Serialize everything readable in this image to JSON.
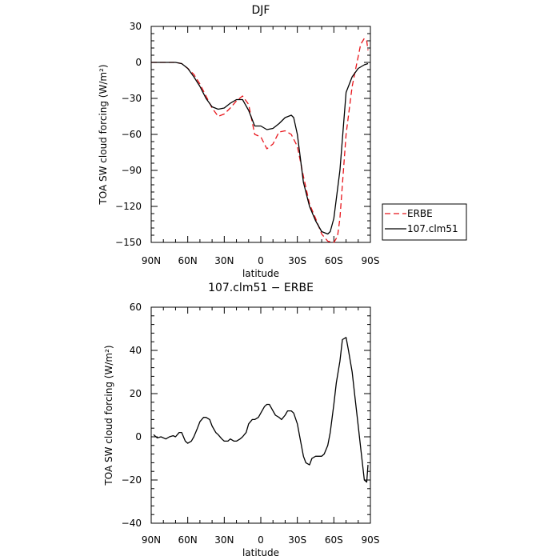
{
  "chart_data": [
    {
      "type": "line",
      "title": "DJF",
      "xlabel": "latitude",
      "ylabel": "TOA SW cloud forcing (W/m²)",
      "xlim": [
        90,
        -90
      ],
      "ylim": [
        -150,
        30
      ],
      "x_ticks": [
        90,
        60,
        30,
        0,
        -30,
        -60,
        -90
      ],
      "x_tick_labels": [
        "90N",
        "60N",
        "30N",
        "0",
        "30S",
        "60S",
        "90S"
      ],
      "y_ticks": [
        30,
        0,
        -30,
        -60,
        -90,
        -120,
        -150
      ],
      "y_tick_labels": [
        "30",
        "0",
        "−30",
        "−60",
        "−90",
        "−120",
        "−150"
      ],
      "legend_position": "right",
      "series": [
        {
          "name": "ERBE",
          "color": "#e8151b",
          "dash": "dashed",
          "x": [
            90,
            85,
            80,
            75,
            70,
            65,
            60,
            55,
            50,
            45,
            40,
            35,
            30,
            25,
            20,
            15,
            10,
            5,
            0,
            -5,
            -10,
            -15,
            -20,
            -25,
            -30,
            -35,
            -40,
            -45,
            -50,
            -55,
            -60,
            -63,
            -65,
            -70,
            -75,
            -78,
            -80,
            -82,
            -85,
            -87,
            -88
          ],
          "y": [
            0,
            0,
            0,
            0,
            0,
            -1,
            -5,
            -10,
            -18,
            -28,
            -38,
            -45,
            -43,
            -38,
            -32,
            -28,
            -35,
            -60,
            -62,
            -72,
            -68,
            -58,
            -57,
            -60,
            -70,
            -95,
            -118,
            -130,
            -143,
            -149,
            -150,
            -145,
            -130,
            -60,
            -20,
            -5,
            5,
            15,
            20,
            18,
            10
          ]
        },
        {
          "name": "107.clm51",
          "color": "#000000",
          "dash": "solid",
          "x": [
            90,
            85,
            80,
            75,
            70,
            65,
            60,
            55,
            50,
            45,
            40,
            35,
            30,
            25,
            20,
            15,
            10,
            5,
            0,
            -5,
            -10,
            -15,
            -20,
            -25,
            -27,
            -30,
            -35,
            -40,
            -45,
            -50,
            -55,
            -57,
            -60,
            -65,
            -70,
            -75,
            -80,
            -85,
            -88
          ],
          "y": [
            0,
            0,
            0,
            0,
            0,
            -1,
            -5,
            -12,
            -20,
            -30,
            -37,
            -39,
            -38,
            -34,
            -31,
            -31,
            -40,
            -53,
            -53,
            -56,
            -55,
            -51,
            -46,
            -44,
            -46,
            -60,
            -100,
            -120,
            -132,
            -141,
            -143,
            -141,
            -130,
            -90,
            -25,
            -12,
            -5,
            -2,
            -1
          ]
        }
      ]
    },
    {
      "type": "line",
      "title": "107.clm51 − ERBE",
      "xlabel": "latitude",
      "ylabel": "TOA SW cloud forcing (W/m²)",
      "xlim": [
        90,
        -90
      ],
      "ylim": [
        -40,
        60
      ],
      "x_ticks": [
        90,
        60,
        30,
        0,
        -30,
        -60,
        -90
      ],
      "x_tick_labels": [
        "90N",
        "60N",
        "30N",
        "0",
        "30S",
        "60S",
        "90S"
      ],
      "y_ticks": [
        60,
        40,
        20,
        0,
        -20,
        -40
      ],
      "y_tick_labels": [
        "60",
        "40",
        "20",
        "0",
        "−20",
        "−40"
      ],
      "series": [
        {
          "color": "#000000",
          "dash": "solid",
          "x": [
            88,
            85,
            82,
            78,
            75,
            72,
            70,
            67,
            65,
            62,
            60,
            57,
            55,
            52,
            50,
            47,
            45,
            42,
            40,
            37,
            35,
            32,
            30,
            27,
            25,
            22,
            20,
            17,
            15,
            12,
            10,
            7,
            5,
            2,
            0,
            -3,
            -5,
            -7,
            -10,
            -12,
            -15,
            -17,
            -20,
            -22,
            -25,
            -27,
            -30,
            -32,
            -35,
            -37,
            -40,
            -42,
            -45,
            -47,
            -50,
            -52,
            -55,
            -57,
            -60,
            -62,
            -65,
            -67,
            -70,
            -72,
            -75,
            -77,
            -80,
            -82,
            -85,
            -87,
            -88
          ],
          "y": [
            1,
            -0.5,
            0,
            -1,
            0,
            0.5,
            0,
            2,
            2,
            -2,
            -3,
            -2,
            0,
            4,
            7,
            9,
            9,
            8,
            5,
            2,
            1,
            -1,
            -2,
            -2,
            -1,
            -2,
            -2,
            -1,
            0,
            2,
            6,
            8,
            8,
            9,
            11,
            14,
            15,
            15,
            12,
            10,
            9,
            8,
            10,
            12,
            12,
            11,
            6,
            0,
            -9,
            -12,
            -13,
            -10,
            -9,
            -9,
            -9,
            -8,
            -4,
            2,
            15,
            25,
            35,
            45,
            46,
            40,
            30,
            20,
            5,
            -5,
            -20,
            -21,
            -13
          ]
        }
      ]
    }
  ]
}
